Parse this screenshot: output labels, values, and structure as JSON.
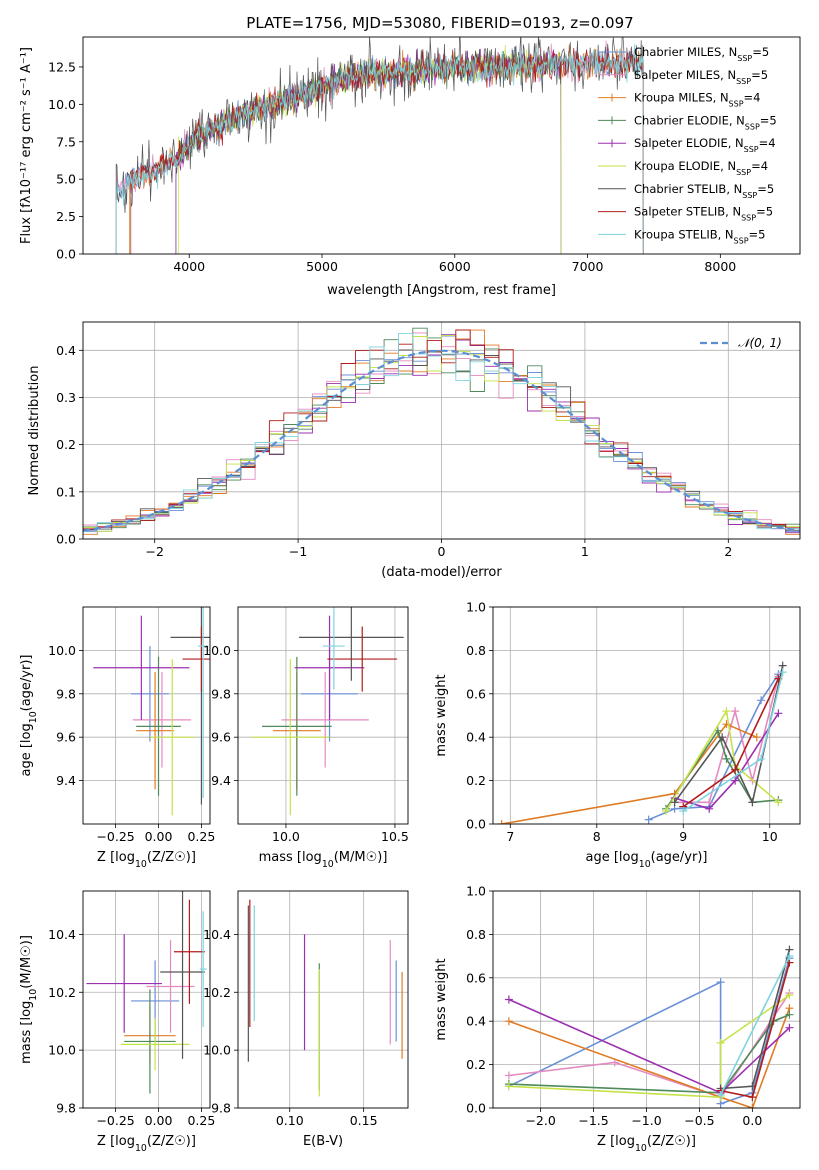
{
  "figure": {
    "title": "PLATE=1756, MJD=53080, FIBERID=0193, z=0.097"
  },
  "colors": {
    "chabrier_miles": "#6a8fd8",
    "salpeter_miles": "#e58ac0",
    "kroupa_miles": "#e07b24",
    "chabrier_elodie": "#4f8a5a",
    "salpeter_elodie": "#9b2fb0",
    "kroupa_elodie": "#c5e24a",
    "chabrier_stelib": "#555555",
    "salpeter_stelib": "#b01c1c",
    "kroupa_stelib": "#7fd3de",
    "grid": "#b0b0b0"
  },
  "chart_data": [
    {
      "id": "spectrum",
      "type": "line",
      "xlabel": "wavelength [Angstrom, rest frame]",
      "ylabel": "Flux [fλ10⁻¹⁷ erg cm⁻² s⁻¹ A⁻¹]",
      "xlim": [
        3200,
        8600
      ],
      "ylim": [
        0,
        14.5
      ],
      "xticks": [
        4000,
        5000,
        6000,
        7000,
        8000
      ],
      "yticks": [
        0.0,
        2.5,
        5.0,
        7.5,
        10.0,
        12.5
      ],
      "grid": false,
      "legend_position": "upper-right",
      "continuum": {
        "x": [
          3450,
          3600,
          3750,
          3900,
          4000,
          4100,
          4300,
          4500,
          4800,
          5000,
          5200,
          5400,
          5600,
          5800,
          6000,
          6200,
          6400,
          6600,
          6800,
          7000,
          7200,
          7400
        ],
        "y": [
          4.3,
          5.0,
          5.6,
          6.4,
          7.4,
          8.1,
          8.9,
          9.7,
          10.5,
          11.2,
          11.8,
          12.1,
          12.2,
          12.3,
          12.5,
          12.5,
          12.6,
          12.6,
          12.7,
          12.7,
          12.8,
          12.8
        ]
      },
      "series": [
        {
          "name": "Chabrier MILES, N_SSP=5",
          "label_main": "Chabrier MILES, N",
          "label_sub": "SSP",
          "label_end": "=5",
          "color_key": "chabrier_miles",
          "x_range": [
            3450,
            7420
          ]
        },
        {
          "name": "Salpeter MILES, N_SSP=5",
          "label_main": "Salpeter MILES, N",
          "label_sub": "SSP",
          "label_end": "=5",
          "color_key": "salpeter_miles",
          "x_range": [
            3450,
            7420
          ]
        },
        {
          "name": "Kroupa MILES, N_SSP=4",
          "label_main": "Kroupa MILES, N",
          "label_sub": "SSP",
          "label_end": "=4",
          "color_key": "kroupa_miles",
          "x_range": [
            3550,
            7420
          ]
        },
        {
          "name": "Chabrier ELODIE, N_SSP=5",
          "label_main": "Chabrier ELODIE, N",
          "label_sub": "SSP",
          "label_end": "=5",
          "color_key": "chabrier_elodie",
          "x_range": [
            3900,
            6800
          ]
        },
        {
          "name": "Salpeter ELODIE, N_SSP=4",
          "label_main": "Salpeter ELODIE, N",
          "label_sub": "SSP",
          "label_end": "=4",
          "color_key": "salpeter_elodie",
          "x_range": [
            3900,
            6800
          ]
        },
        {
          "name": "Kroupa ELODIE, N_SSP=4",
          "label_main": "Kroupa ELODIE, N",
          "label_sub": "SSP",
          "label_end": "=4",
          "color_key": "kroupa_elodie",
          "x_range": [
            3920,
            6800
          ]
        },
        {
          "name": "Chabrier STELIB, N_SSP=5",
          "label_main": "Chabrier STELIB, N",
          "label_sub": "SSP",
          "label_end": "=5",
          "color_key": "chabrier_stelib",
          "x_range": [
            3450,
            7420
          ]
        },
        {
          "name": "Salpeter STELIB, N_SSP=5",
          "label_main": "Salpeter STELIB, N",
          "label_sub": "SSP",
          "label_end": "=5",
          "color_key": "salpeter_stelib",
          "x_range": [
            3560,
            7420
          ]
        },
        {
          "name": "Kroupa STELIB, N_SSP=5",
          "label_main": "Kroupa STELIB, N",
          "label_sub": "SSP",
          "label_end": "=5",
          "color_key": "kroupa_stelib",
          "x_range": [
            3450,
            7420
          ]
        }
      ]
    },
    {
      "id": "residuals",
      "type": "histogram",
      "xlabel": "(data-model)/error",
      "ylabel": "Normed distribution",
      "xlim": [
        -2.5,
        2.5
      ],
      "ylim": [
        0,
        0.46
      ],
      "xticks": [
        -2,
        -1,
        0,
        1,
        2
      ],
      "xtick_labels": [
        "−2",
        "−1",
        "0",
        "1",
        "2"
      ],
      "yticks": [
        0.0,
        0.1,
        0.2,
        0.3,
        0.4
      ],
      "grid": true,
      "bin_width": 0.1,
      "bin_start": -2.5,
      "reference": {
        "name": "N(0,1)",
        "label": "𝒩(0, 1)",
        "sigma": 1.0,
        "mean": 0.0
      },
      "legend_position": "upper-right"
    },
    {
      "id": "age_vs_Z",
      "type": "errorbar",
      "xlabel_main": "Z [log",
      "xlabel_sub": "10",
      "xlabel_end": "(Z/Z☉)]",
      "ylabel_main": "age  [log",
      "ylabel_sub": "10",
      "ylabel_end": "(age/yr)]",
      "xlim": [
        -0.44,
        0.3
      ],
      "ylim": [
        9.2,
        10.2
      ],
      "xticks": [
        -0.25,
        0.0,
        0.25
      ],
      "xtick_labels": [
        "−0.25",
        "0.00",
        "0.25"
      ],
      "yticks": [
        9.4,
        9.6,
        9.8,
        10.0
      ],
      "grid": true,
      "points": [
        {
          "key": "chabrier_miles",
          "x": -0.05,
          "xerr": 0.11,
          "y": 9.8,
          "yerr": 0.22
        },
        {
          "key": "salpeter_miles",
          "x": 0.02,
          "xerr": 0.17,
          "y": 9.68,
          "yerr": 0.22
        },
        {
          "key": "kroupa_miles",
          "x": -0.02,
          "xerr": 0.11,
          "y": 9.63,
          "yerr": 0.27
        },
        {
          "key": "chabrier_elodie",
          "x": 0.0,
          "xerr": 0.13,
          "y": 9.65,
          "yerr": 0.32
        },
        {
          "key": "salpeter_elodie",
          "x": -0.1,
          "xerr": 0.28,
          "y": 9.92,
          "yerr": 0.24
        },
        {
          "key": "kroupa_elodie",
          "x": 0.08,
          "xerr": 0.13,
          "y": 9.6,
          "yerr": 0.36
        },
        {
          "key": "chabrier_stelib",
          "x": 0.25,
          "xerr": 0.18,
          "y": 10.06,
          "yerr": 0.77
        },
        {
          "key": "salpeter_stelib",
          "x": 0.25,
          "xerr": 0.11,
          "y": 9.96,
          "yerr": 0.15
        },
        {
          "key": "kroupa_stelib",
          "x": 0.26,
          "xerr": 0.03,
          "y": 10.02,
          "yerr": 0.7
        }
      ]
    },
    {
      "id": "age_vs_mass",
      "type": "errorbar",
      "xlabel_main": "mass [log",
      "xlabel_sub": "10",
      "xlabel_end": "(M/M☉)]",
      "xlim": [
        9.78,
        10.56
      ],
      "ylim": [
        9.2,
        10.2
      ],
      "xticks": [
        10.0,
        10.5
      ],
      "xtick_labels": [
        "10.0",
        "10.5"
      ],
      "yticks": [
        9.4,
        9.6,
        9.8,
        10.0
      ],
      "grid": true,
      "points": [
        {
          "key": "chabrier_miles",
          "x": 10.2,
          "xerr": 0.13,
          "y": 9.8,
          "yerr": 0.22
        },
        {
          "key": "salpeter_miles",
          "x": 10.18,
          "xerr": 0.2,
          "y": 9.68,
          "yerr": 0.22
        },
        {
          "key": "kroupa_miles",
          "x": 10.05,
          "xerr": 0.11,
          "y": 9.63,
          "yerr": 0.27
        },
        {
          "key": "chabrier_elodie",
          "x": 10.05,
          "xerr": 0.16,
          "y": 9.65,
          "yerr": 0.32
        },
        {
          "key": "salpeter_elodie",
          "x": 10.2,
          "xerr": 0.16,
          "y": 9.92,
          "yerr": 0.24
        },
        {
          "key": "kroupa_elodie",
          "x": 10.02,
          "xerr": 0.18,
          "y": 9.6,
          "yerr": 0.36
        },
        {
          "key": "chabrier_stelib",
          "x": 10.3,
          "xerr": 0.24,
          "y": 10.06,
          "yerr": 0.2
        },
        {
          "key": "salpeter_stelib",
          "x": 10.35,
          "xerr": 0.16,
          "y": 9.96,
          "yerr": 0.15
        },
        {
          "key": "kroupa_stelib",
          "x": 10.22,
          "xerr": 0.05,
          "y": 10.02,
          "yerr": 0.2
        }
      ]
    },
    {
      "id": "weight_vs_age",
      "type": "line",
      "xlabel_main": "age  [log",
      "xlabel_sub": "10",
      "xlabel_end": "(age/yr)]",
      "ylabel": "mass weight",
      "xlim": [
        6.8,
        10.35
      ],
      "ylim": [
        0,
        1.0
      ],
      "xticks": [
        7,
        8,
        9,
        10
      ],
      "yticks": [
        0.0,
        0.2,
        0.4,
        0.6,
        0.8,
        1.0
      ],
      "grid": true,
      "series": [
        {
          "key": "chabrier_miles",
          "points": [
            [
              8.6,
              0.02
            ],
            [
              8.9,
              0.07
            ],
            [
              9.3,
              0.08
            ],
            [
              9.9,
              0.57
            ],
            [
              10.1,
              0.69
            ]
          ]
        },
        {
          "key": "salpeter_miles",
          "points": [
            [
              8.9,
              0.1
            ],
            [
              9.3,
              0.1
            ],
            [
              9.6,
              0.52
            ],
            [
              9.8,
              0.2
            ],
            [
              10.1,
              0.68
            ]
          ]
        },
        {
          "key": "kroupa_miles",
          "points": [
            [
              6.9,
              0.0
            ],
            [
              8.9,
              0.14
            ],
            [
              9.5,
              0.46
            ],
            [
              9.85,
              0.4
            ]
          ]
        },
        {
          "key": "chabrier_elodie",
          "points": [
            [
              8.8,
              0.07
            ],
            [
              9.4,
              0.43
            ],
            [
              9.5,
              0.3
            ],
            [
              9.8,
              0.1
            ],
            [
              10.1,
              0.11
            ]
          ]
        },
        {
          "key": "salpeter_elodie",
          "points": [
            [
              8.9,
              0.12
            ],
            [
              9.3,
              0.07
            ],
            [
              9.6,
              0.2
            ],
            [
              10.1,
              0.51
            ]
          ]
        },
        {
          "key": "kroupa_elodie",
          "points": [
            [
              8.8,
              0.06
            ],
            [
              9.5,
              0.52
            ],
            [
              9.6,
              0.27
            ],
            [
              10.1,
              0.1
            ]
          ]
        },
        {
          "key": "chabrier_stelib",
          "points": [
            [
              8.9,
              0.1
            ],
            [
              9.45,
              0.4
            ],
            [
              9.8,
              0.1
            ],
            [
              10.15,
              0.73
            ]
          ]
        },
        {
          "key": "salpeter_stelib",
          "points": [
            [
              9.0,
              0.08
            ],
            [
              9.6,
              0.25
            ],
            [
              10.1,
              0.67
            ]
          ]
        },
        {
          "key": "kroupa_stelib",
          "points": [
            [
              9.0,
              0.06
            ],
            [
              9.9,
              0.3
            ],
            [
              10.15,
              0.7
            ]
          ]
        }
      ]
    },
    {
      "id": "mass_vs_Z",
      "type": "errorbar",
      "xlabel_main": "Z [log",
      "xlabel_sub": "10",
      "xlabel_end": "(Z/Z☉)]",
      "ylabel_main": "mass [log",
      "ylabel_sub": "10",
      "ylabel_end": "(M/M☉)]",
      "xlim": [
        -0.44,
        0.3
      ],
      "ylim": [
        9.8,
        10.55
      ],
      "xticks": [
        -0.25,
        0.0,
        0.25
      ],
      "xtick_labels": [
        "−0.25",
        "0.00",
        "0.25"
      ],
      "yticks": [
        9.8,
        10.0,
        10.2,
        10.4
      ],
      "grid": true,
      "points": [
        {
          "key": "chabrier_miles",
          "x": -0.02,
          "xerr": 0.14,
          "y": 10.17,
          "yerr": 0.14
        },
        {
          "key": "salpeter_miles",
          "x": 0.07,
          "xerr": 0.14,
          "y": 10.22,
          "yerr": 0.16
        },
        {
          "key": "kroupa_miles",
          "x": -0.05,
          "xerr": 0.15,
          "y": 10.05,
          "yerr": 0.1
        },
        {
          "key": "chabrier_elodie",
          "x": -0.05,
          "xerr": 0.15,
          "y": 10.03,
          "yerr": 0.18
        },
        {
          "key": "salpeter_elodie",
          "x": -0.2,
          "xerr": 0.22,
          "y": 10.23,
          "yerr": 0.17
        },
        {
          "key": "kroupa_elodie",
          "x": -0.02,
          "xerr": 0.2,
          "y": 10.02,
          "yerr": 0.09
        },
        {
          "key": "chabrier_stelib",
          "x": 0.14,
          "xerr": 0.13,
          "y": 10.27,
          "yerr": 0.3
        },
        {
          "key": "salpeter_stelib",
          "x": 0.18,
          "xerr": 0.09,
          "y": 10.34,
          "yerr": 0.18
        },
        {
          "key": "kroupa_stelib",
          "x": 0.26,
          "xerr": 0.02,
          "y": 10.28,
          "yerr": 0.2
        }
      ]
    },
    {
      "id": "mass_vs_ebv",
      "type": "errorbar",
      "xlabel": "E(B-V)",
      "xlim": [
        0.065,
        0.18
      ],
      "ylim": [
        9.8,
        10.55
      ],
      "xticks": [
        0.1,
        0.15
      ],
      "xtick_labels": [
        "0.10",
        "0.15"
      ],
      "yticks": [
        9.8,
        10.0,
        10.2,
        10.4
      ],
      "grid": true,
      "points": [
        {
          "key": "chabrier_miles",
          "x": 0.172,
          "xerr": 0,
          "y": 10.17,
          "yerr": 0.14
        },
        {
          "key": "salpeter_miles",
          "x": 0.168,
          "xerr": 0,
          "y": 10.2,
          "yerr": 0.18
        },
        {
          "key": "kroupa_miles",
          "x": 0.176,
          "xerr": 0,
          "y": 10.12,
          "yerr": 0.15
        },
        {
          "key": "chabrier_elodie",
          "x": 0.12,
          "xerr": 0,
          "y": 10.08,
          "yerr": 0.22
        },
        {
          "key": "salpeter_elodie",
          "x": 0.11,
          "xerr": 0,
          "y": 10.2,
          "yerr": 0.2
        },
        {
          "key": "kroupa_elodie",
          "x": 0.12,
          "xerr": 0,
          "y": 10.06,
          "yerr": 0.22
        },
        {
          "key": "chabrier_stelib",
          "x": 0.072,
          "xerr": 0,
          "y": 10.23,
          "yerr": 0.27
        },
        {
          "key": "salpeter_stelib",
          "x": 0.073,
          "xerr": 0,
          "y": 10.3,
          "yerr": 0.22
        },
        {
          "key": "kroupa_stelib",
          "x": 0.076,
          "xerr": 0,
          "y": 10.3,
          "yerr": 0.2
        }
      ]
    },
    {
      "id": "weight_vs_Z",
      "type": "line",
      "xlabel_main": "Z [log",
      "xlabel_sub": "10",
      "xlabel_end": "(Z/Z☉)]",
      "ylabel": "mass weight",
      "xlim": [
        -2.45,
        0.45
      ],
      "ylim": [
        0,
        1.0
      ],
      "xticks": [
        -2.0,
        -1.5,
        -1.0,
        -0.5,
        0.0
      ],
      "xtick_labels": [
        "−2.0",
        "−1.5",
        "−1.0",
        "−0.5",
        "0.0"
      ],
      "yticks": [
        0.0,
        0.2,
        0.4,
        0.6,
        0.8,
        1.0
      ],
      "grid": true,
      "series": [
        {
          "key": "chabrier_miles",
          "points": [
            [
              -2.3,
              0.1
            ],
            [
              -0.3,
              0.58
            ],
            [
              -0.3,
              0.02
            ],
            [
              0.0,
              0.07
            ],
            [
              0.35,
              0.69
            ]
          ]
        },
        {
          "key": "salpeter_miles",
          "points": [
            [
              -2.3,
              0.15
            ],
            [
              -1.3,
              0.21
            ],
            [
              -0.3,
              0.05
            ],
            [
              0.35,
              0.53
            ]
          ]
        },
        {
          "key": "kroupa_miles",
          "points": [
            [
              -2.3,
              0.4
            ],
            [
              -0.3,
              0.05
            ],
            [
              0.0,
              0.0
            ],
            [
              0.35,
              0.46
            ]
          ]
        },
        {
          "key": "chabrier_elodie",
          "points": [
            [
              -2.3,
              0.11
            ],
            [
              -0.3,
              0.07
            ],
            [
              0.2,
              0.4
            ],
            [
              0.35,
              0.43
            ]
          ]
        },
        {
          "key": "salpeter_elodie",
          "points": [
            [
              -2.3,
              0.5
            ],
            [
              -0.3,
              0.07
            ],
            [
              0.35,
              0.37
            ]
          ]
        },
        {
          "key": "kroupa_elodie",
          "points": [
            [
              -2.3,
              0.1
            ],
            [
              -0.3,
              0.05
            ],
            [
              -0.3,
              0.3
            ],
            [
              0.35,
              0.52
            ]
          ]
        },
        {
          "key": "chabrier_stelib",
          "points": [
            [
              -0.3,
              0.09
            ],
            [
              0.0,
              0.1
            ],
            [
              0.35,
              0.73
            ]
          ]
        },
        {
          "key": "salpeter_stelib",
          "points": [
            [
              -0.3,
              0.08
            ],
            [
              0.0,
              0.05
            ],
            [
              0.35,
              0.67
            ]
          ]
        },
        {
          "key": "kroupa_stelib",
          "points": [
            [
              -0.3,
              0.06
            ],
            [
              0.35,
              0.7
            ]
          ]
        }
      ]
    }
  ]
}
